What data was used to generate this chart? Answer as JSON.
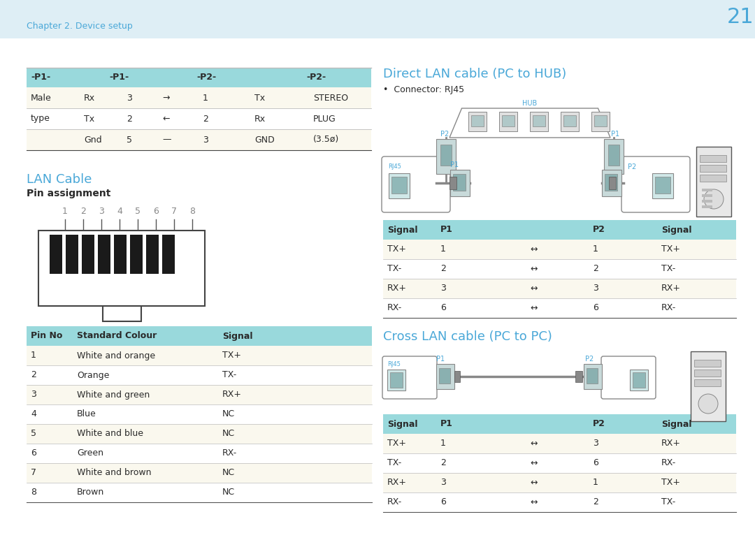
{
  "bg_color": "#deeef5",
  "white": "#ffffff",
  "cyan_header": "#99d9dc",
  "cream_row": "#faf8ee",
  "blue_text": "#4aa8d8",
  "dark_text": "#2a2a2a",
  "gray_line": "#bbbbbb",
  "light_border": "#aaaaaa",
  "page_number": "21",
  "chapter_text": "Chapter 2. Device setup",
  "top_table_col_headers": [
    "-P1-",
    "-P1-",
    "-P2-",
    "-P2-"
  ],
  "top_table_rows": [
    [
      "Male",
      "Rx",
      "3",
      "→",
      "1",
      "Tx",
      "STEREO"
    ],
    [
      "type",
      "Tx",
      "2",
      "←",
      "2",
      "Rx",
      "PLUG"
    ],
    [
      "",
      "Gnd",
      "5",
      "—",
      "3",
      "GND",
      "(3.5ø)"
    ]
  ],
  "lan_cable_title": "LAN Cable",
  "pin_assignment_text": "Pin assignment",
  "pin_numbers": [
    "1",
    "2",
    "3",
    "4",
    "5",
    "6",
    "7",
    "8"
  ],
  "pin_table_headers": [
    "Pin No",
    "Standard Colour",
    "Signal"
  ],
  "pin_table_rows": [
    [
      "1",
      "White and orange",
      "TX+"
    ],
    [
      "2",
      "Orange",
      "TX-"
    ],
    [
      "3",
      "White and green",
      "RX+"
    ],
    [
      "4",
      "Blue",
      "NC"
    ],
    [
      "5",
      "White and blue",
      "NC"
    ],
    [
      "6",
      "Green",
      "RX-"
    ],
    [
      "7",
      "White and brown",
      "NC"
    ],
    [
      "8",
      "Brown",
      "NC"
    ]
  ],
  "direct_title": "Direct LAN cable (PC to HUB)",
  "direct_bullet": "•  Connector: RJ45",
  "direct_table_headers": [
    "Signal",
    "P1",
    "",
    "P2",
    "Signal"
  ],
  "direct_table_rows": [
    [
      "TX+",
      "1",
      "↔",
      "1",
      "TX+"
    ],
    [
      "TX-",
      "2",
      "↔",
      "2",
      "TX-"
    ],
    [
      "RX+",
      "3",
      "↔",
      "3",
      "RX+"
    ],
    [
      "RX-",
      "6",
      "↔",
      "6",
      "RX-"
    ]
  ],
  "cross_title": "Cross LAN cable (PC to PC)",
  "cross_table_headers": [
    "Signal",
    "P1",
    "",
    "P2",
    "Signal"
  ],
  "cross_table_rows": [
    [
      "TX+",
      "1",
      "↔",
      "3",
      "RX+"
    ],
    [
      "TX-",
      "2",
      "↔",
      "6",
      "RX-"
    ],
    [
      "RX+",
      "3",
      "↔",
      "1",
      "TX+"
    ],
    [
      "RX-",
      "6",
      "↔",
      "2",
      "TX-"
    ]
  ]
}
